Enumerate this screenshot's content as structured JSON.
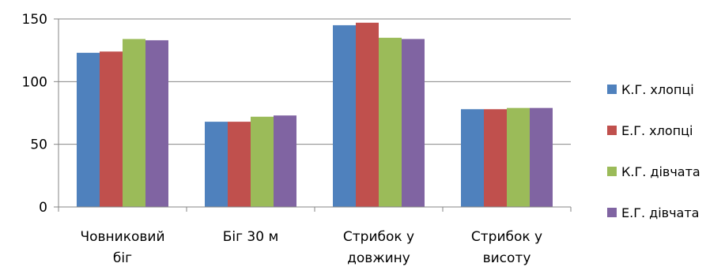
{
  "chart_data": {
    "type": "bar",
    "title": "",
    "xlabel": "",
    "ylabel": "",
    "ylim": [
      0,
      150
    ],
    "yticks": [
      0,
      50,
      100,
      150
    ],
    "grid": true,
    "legend_position": "right",
    "categories": [
      [
        "Човниковий",
        "біг"
      ],
      [
        "Біг 30 м"
      ],
      [
        "Стрибок у",
        "довжину"
      ],
      [
        "Стрибок у",
        "висоту"
      ]
    ],
    "series": [
      {
        "name": "К.Г. хлопці",
        "color": "#4F81BD",
        "values": [
          123,
          68,
          145,
          78
        ]
      },
      {
        "name": "Е.Г. хлопці",
        "color": "#C0504D",
        "values": [
          124,
          68,
          147,
          78
        ]
      },
      {
        "name": "К.Г. дівчата",
        "color": "#9BBB59",
        "values": [
          134,
          72,
          135,
          79
        ]
      },
      {
        "name": "Е.Г. дівчата",
        "color": "#8064A2",
        "values": [
          133,
          73,
          134,
          79
        ]
      }
    ]
  }
}
